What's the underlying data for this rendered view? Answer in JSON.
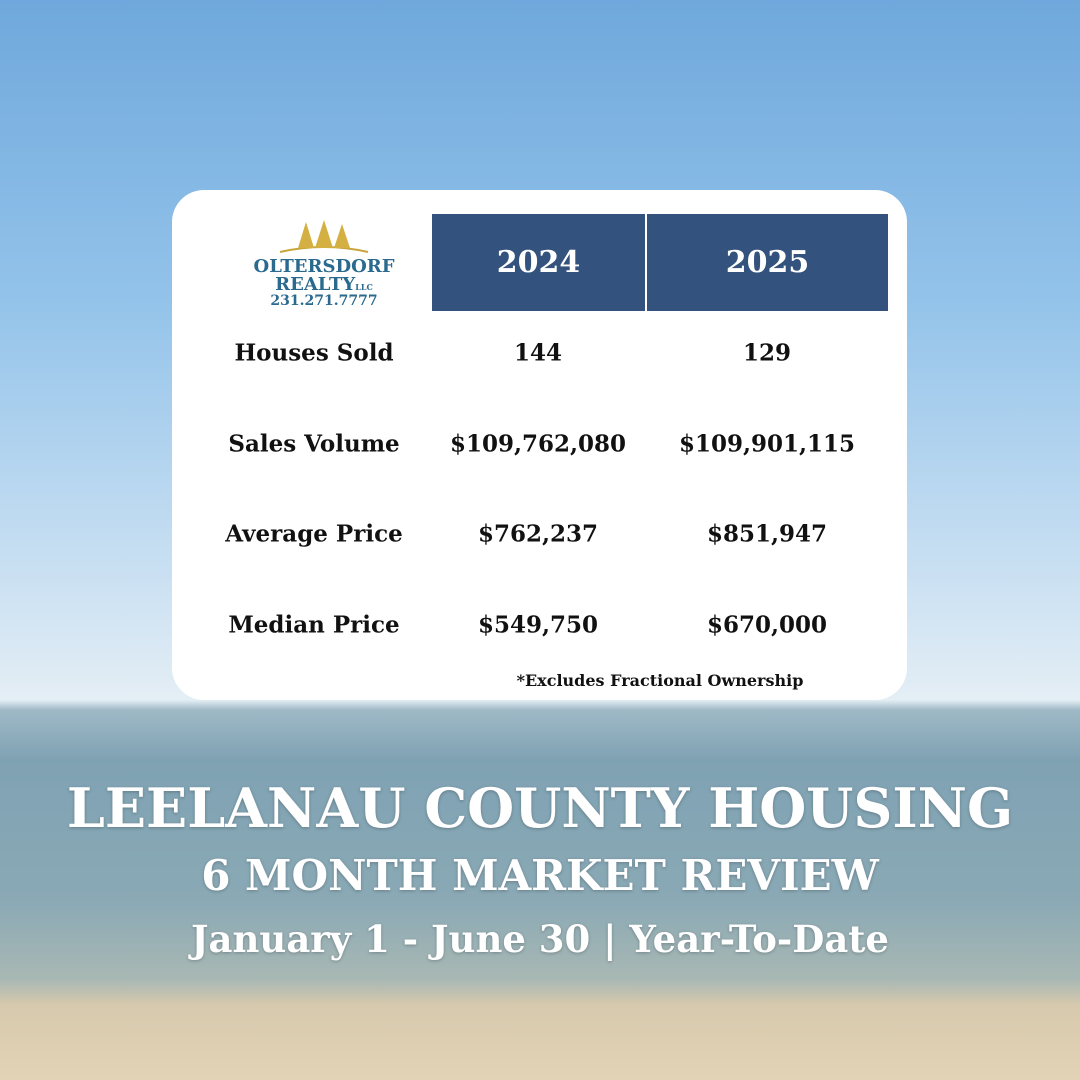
{
  "logo": {
    "name": "OLTERSDORF",
    "name2": "REALTY",
    "suffix": "LLC",
    "phone": "231.271.7777"
  },
  "table": {
    "header": [
      "2024",
      "2025"
    ],
    "rows": [
      [
        "Houses Sold",
        "144",
        "129"
      ],
      [
        "Sales Volume",
        "$109,762,080",
        "$109,901,115"
      ],
      [
        "Average Price",
        "$762,237",
        "$851,947"
      ],
      [
        "Median Price",
        "$549,750",
        "$670,000"
      ]
    ],
    "footnote": "*Excludes Fractional Ownership"
  },
  "footer": {
    "title": "LEELANAU COUNTY HOUSING",
    "subtitle": "6 MONTH MARKET REVIEW",
    "dates": "January 1 - June 30 | Year-To-Date"
  }
}
